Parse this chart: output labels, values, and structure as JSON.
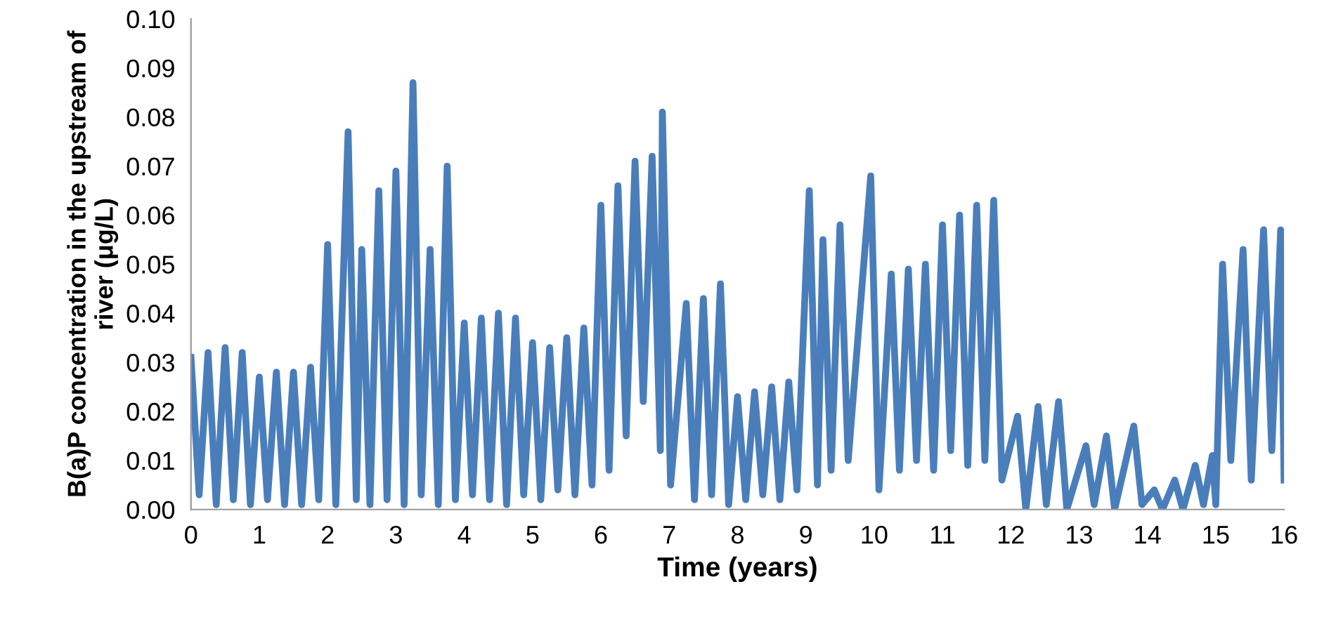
{
  "chart_data": {
    "type": "line",
    "xlabel": "Time (years)",
    "ylabel": "B(a)P concentration in the upstream of river (μg/L)",
    "x": [
      0,
      0.12,
      0.25,
      0.37,
      0.5,
      0.62,
      0.75,
      0.87,
      1,
      1.12,
      1.25,
      1.37,
      1.5,
      1.62,
      1.75,
      1.87,
      2,
      2.12,
      2.3,
      2.42,
      2.5,
      2.62,
      2.75,
      2.87,
      3,
      3.12,
      3.25,
      3.37,
      3.5,
      3.62,
      3.75,
      3.87,
      4,
      4.12,
      4.25,
      4.37,
      4.5,
      4.62,
      4.75,
      4.87,
      5,
      5.12,
      5.25,
      5.37,
      5.5,
      5.62,
      5.75,
      5.87,
      6,
      6.12,
      6.25,
      6.37,
      6.5,
      6.62,
      6.75,
      6.87,
      6.9,
      7.02,
      7.25,
      7.37,
      7.5,
      7.62,
      7.75,
      7.87,
      8,
      8.12,
      8.25,
      8.37,
      8.5,
      8.62,
      8.75,
      8.87,
      9.05,
      9.17,
      9.25,
      9.37,
      9.5,
      9.62,
      9.95,
      10.07,
      10.25,
      10.37,
      10.5,
      10.62,
      10.75,
      10.87,
      11,
      11.12,
      11.25,
      11.37,
      11.5,
      11.62,
      11.75,
      11.87,
      12.1,
      12.22,
      12.4,
      12.52,
      12.7,
      12.82,
      13.1,
      13.22,
      13.4,
      13.52,
      13.8,
      13.92,
      14.1,
      14.22,
      14.4,
      14.52,
      14.7,
      14.82,
      14.95,
      15.0,
      15.1,
      15.22,
      15.4,
      15.52,
      15.7,
      15.82,
      15.95,
      16.0
    ],
    "series": [
      {
        "color": "#4a7ebb",
        "values": [
          0.031,
          0.003,
          0.032,
          0.001,
          0.033,
          0.002,
          0.032,
          0.001,
          0.027,
          0.002,
          0.028,
          0.001,
          0.028,
          0.001,
          0.029,
          0.002,
          0.054,
          0.001,
          0.077,
          0.002,
          0.053,
          0.001,
          0.065,
          0.002,
          0.069,
          0.001,
          0.087,
          0.003,
          0.053,
          0.001,
          0.07,
          0.002,
          0.038,
          0.003,
          0.039,
          0.002,
          0.04,
          0.001,
          0.039,
          0.003,
          0.034,
          0.002,
          0.033,
          0.004,
          0.035,
          0.003,
          0.037,
          0.005,
          0.062,
          0.008,
          0.066,
          0.015,
          0.071,
          0.022,
          0.072,
          0.012,
          0.081,
          0.005,
          0.042,
          0.002,
          0.043,
          0.003,
          0.046,
          0.001,
          0.023,
          0.002,
          0.024,
          0.003,
          0.025,
          0.002,
          0.026,
          0.004,
          0.065,
          0.005,
          0.055,
          0.008,
          0.058,
          0.01,
          0.068,
          0.004,
          0.048,
          0.008,
          0.049,
          0.01,
          0.05,
          0.008,
          0.058,
          0.012,
          0.06,
          0.009,
          0.062,
          0.01,
          0.063,
          0.006,
          0.019,
          0.0,
          0.021,
          0.001,
          0.022,
          0.0,
          0.013,
          0.001,
          0.015,
          0.0,
          0.017,
          0.001,
          0.004,
          0.0,
          0.006,
          0.0,
          0.009,
          0.001,
          0.011,
          0.001,
          0.05,
          0.01,
          0.053,
          0.006,
          0.057,
          0.012,
          0.057,
          0.006
        ]
      }
    ],
    "xlim": [
      0,
      16
    ],
    "xticks": [
      0,
      1,
      2,
      3,
      4,
      5,
      6,
      7,
      8,
      9,
      10,
      11,
      12,
      13,
      14,
      15,
      16
    ],
    "ylim": [
      0,
      0.1
    ],
    "yticks": [
      {
        "value": 0,
        "label": "0.00"
      },
      {
        "value": 0.01,
        "label": "0.01"
      },
      {
        "value": 0.02,
        "label": "0.02"
      },
      {
        "value": 0.03,
        "label": "0.03"
      },
      {
        "value": 0.04,
        "label": "0.04"
      },
      {
        "value": 0.05,
        "label": "0.05"
      },
      {
        "value": 0.06,
        "label": "0.06"
      },
      {
        "value": 0.07,
        "label": "0.07"
      },
      {
        "value": 0.08,
        "label": "0.08"
      },
      {
        "value": 0.09,
        "label": "0.09"
      },
      {
        "value": 0.1,
        "label": "0.10"
      }
    ],
    "grid": false,
    "marker": "none",
    "line_style": "solid"
  }
}
